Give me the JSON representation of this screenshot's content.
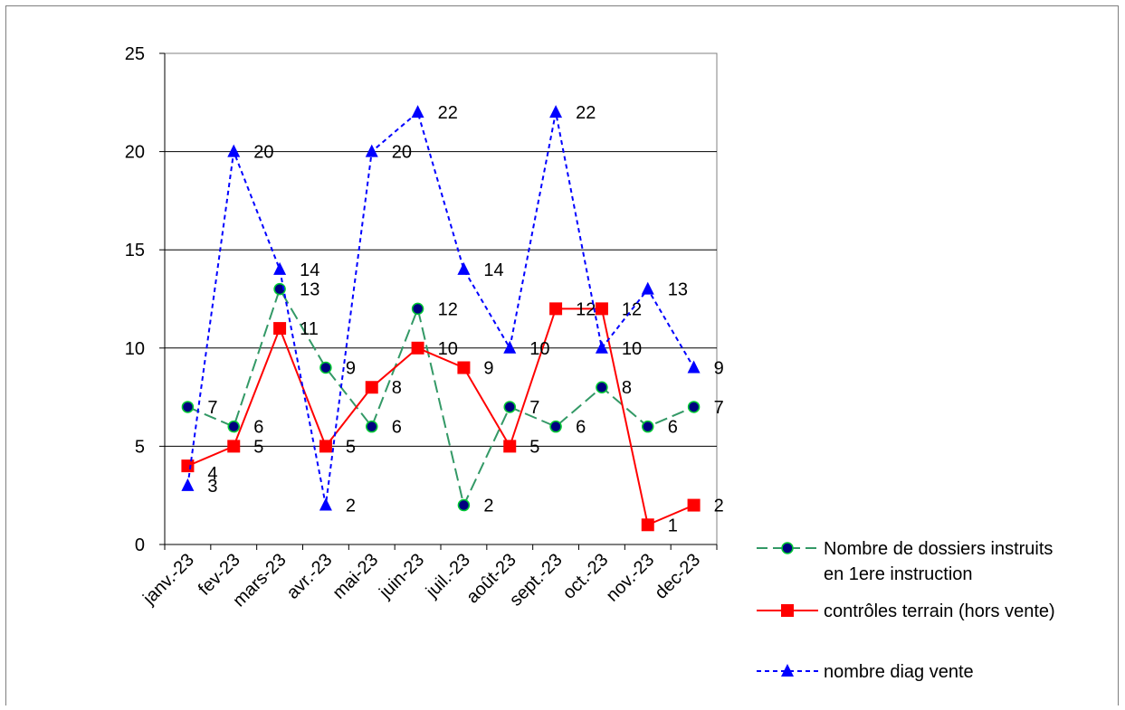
{
  "chart_data": {
    "type": "line",
    "categories": [
      "janv.-23",
      "fev-23",
      "mars-23",
      "avr.-23",
      "mai-23",
      "juin-23",
      "juil.-23",
      "août-23",
      "sept.-23",
      "oct.-23",
      "nov.-23",
      "dec-23"
    ],
    "ylim": [
      0,
      25
    ],
    "yticks": [
      0,
      5,
      10,
      15,
      20,
      25
    ],
    "grid": true,
    "legend_position": "right",
    "series": [
      {
        "name": "Nombre de dossiers instruits en 1ere instruction",
        "legend_lines": [
          "Nombre de dossiers instruits",
          "en 1ere instruction"
        ],
        "values": [
          7,
          6,
          13,
          9,
          6,
          12,
          2,
          7,
          6,
          8,
          6,
          7
        ],
        "color": "#339966",
        "marker_fill": "#000080",
        "marker": "circle",
        "line_style": "long-dash"
      },
      {
        "name": "contrôles terrain (hors vente)",
        "legend_lines": [
          "contrôles terrain (hors vente)"
        ],
        "values": [
          4,
          5,
          11,
          5,
          8,
          10,
          9,
          5,
          12,
          12,
          1,
          2
        ],
        "color": "#ff0000",
        "marker_fill": "#ff0000",
        "marker": "square",
        "line_style": "solid"
      },
      {
        "name": "nombre diag vente",
        "legend_lines": [
          "nombre diag vente"
        ],
        "values": [
          3,
          20,
          14,
          2,
          20,
          22,
          14,
          10,
          22,
          10,
          13,
          9
        ],
        "color": "#0000ff",
        "marker_fill": "#0000ff",
        "marker": "triangle",
        "line_style": "short-dash"
      }
    ]
  }
}
